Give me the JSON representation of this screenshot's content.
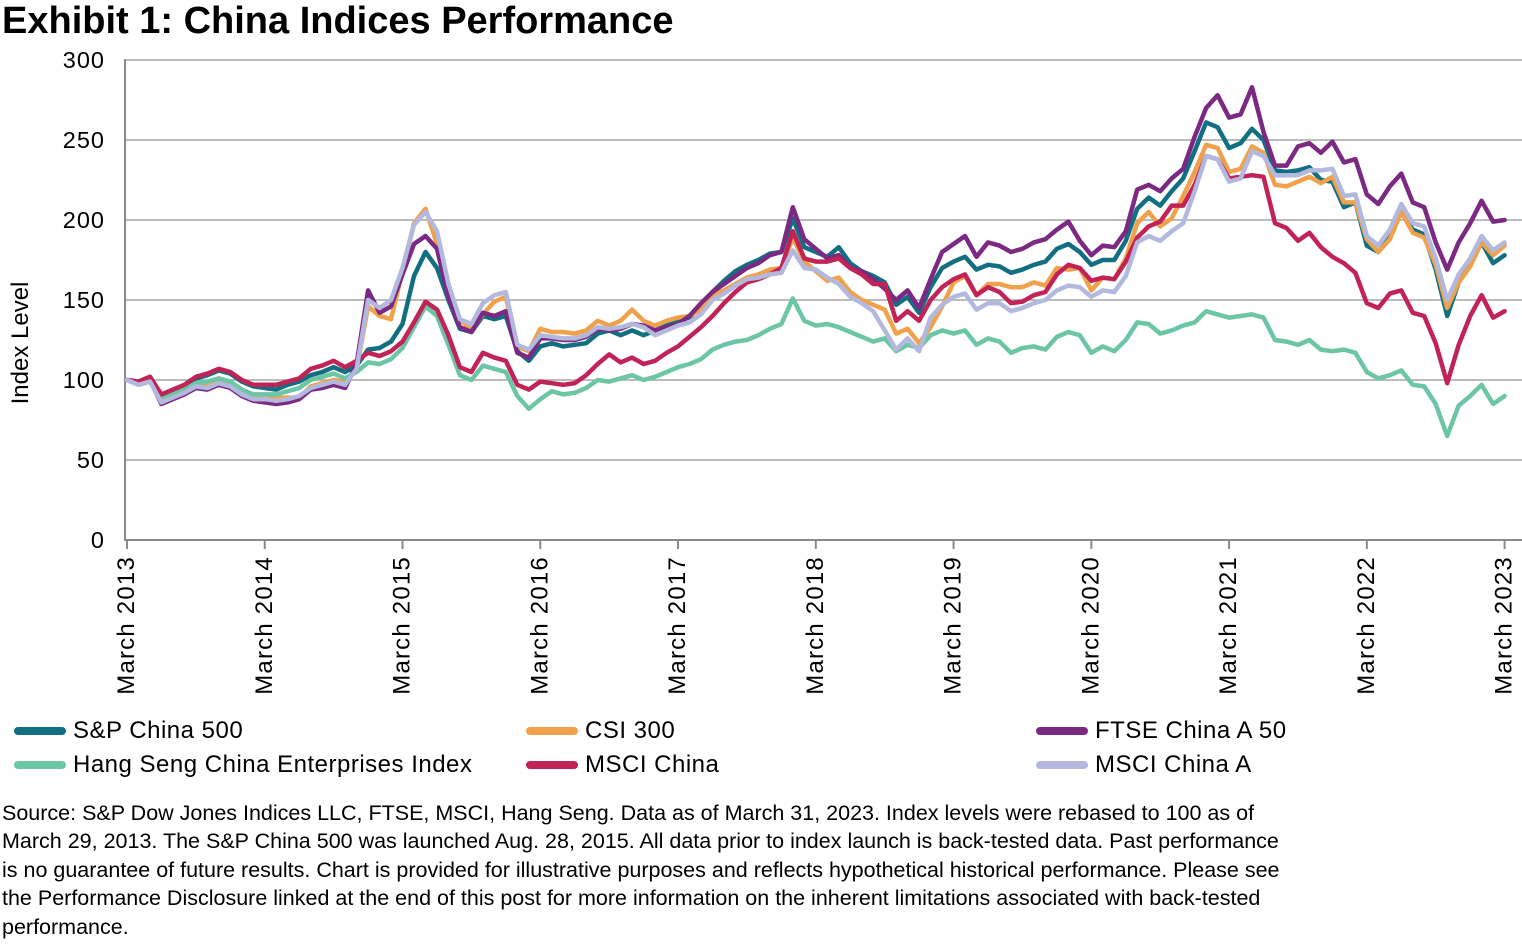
{
  "title": "Exhibit 1: China Indices Performance",
  "chart_data": {
    "type": "line",
    "title": "Exhibit 1: China Indices Performance",
    "ylabel": "Index Level",
    "ylim": [
      0,
      300
    ],
    "yticks": [
      0,
      50,
      100,
      150,
      200,
      250,
      300
    ],
    "grid": "horizontal",
    "legend_position": "bottom",
    "x_unit": "monthly observations from March 2013 to March 2023",
    "x_axis": {
      "tick_labels": [
        "March 2013",
        "March 2014",
        "March 2015",
        "March 2016",
        "March 2017",
        "March 2018",
        "March 2019",
        "March 2020",
        "March 2021",
        "March 2022",
        "March 2023"
      ],
      "tick_month_indices": [
        0,
        12,
        24,
        36,
        48,
        60,
        72,
        84,
        96,
        108,
        120
      ]
    },
    "series": [
      {
        "name": "S&P China 500",
        "color": "#116f81",
        "values": [
          100,
          99,
          102,
          90,
          93,
          96,
          101,
          103,
          106,
          104,
          99,
          96,
          95,
          94,
          97,
          99,
          103,
          105,
          108,
          105,
          109,
          119,
          120,
          124,
          135,
          165,
          180,
          170,
          150,
          132,
          130,
          140,
          138,
          140,
          118,
          112,
          121,
          123,
          121,
          122,
          123,
          129,
          131,
          128,
          131,
          128,
          131,
          134,
          138,
          139,
          146,
          155,
          162,
          168,
          172,
          175,
          179,
          180,
          201,
          183,
          180,
          177,
          183,
          173,
          168,
          165,
          161,
          147,
          152,
          142,
          158,
          170,
          174,
          177,
          169,
          172,
          171,
          167,
          169,
          172,
          174,
          182,
          185,
          180,
          172,
          175,
          175,
          187,
          207,
          214,
          209,
          218,
          226,
          243,
          261,
          258,
          245,
          248,
          257,
          250,
          231,
          230,
          231,
          233,
          225,
          224,
          208,
          211,
          184,
          180,
          189,
          205,
          194,
          191,
          169,
          140,
          161,
          172,
          186,
          173,
          178
        ]
      },
      {
        "name": "CSI 300",
        "color": "#efa24b",
        "values": [
          100,
          98,
          101,
          86,
          90,
          93,
          97,
          98,
          101,
          98,
          93,
          90,
          88,
          89,
          89,
          89,
          96,
          98,
          100,
          99,
          107,
          146,
          140,
          138,
          168,
          198,
          207,
          185,
          157,
          138,
          131,
          141,
          149,
          152,
          121,
          118,
          132,
          130,
          130,
          129,
          131,
          137,
          134,
          137,
          144,
          137,
          134,
          137,
          139,
          140,
          144,
          153,
          156,
          160,
          164,
          166,
          169,
          170,
          189,
          174,
          168,
          162,
          164,
          155,
          150,
          147,
          144,
          129,
          132,
          123,
          133,
          146,
          161,
          165,
          153,
          160,
          160,
          158,
          158,
          161,
          159,
          170,
          169,
          170,
          156,
          164,
          163,
          176,
          198,
          205,
          196,
          201,
          215,
          230,
          247,
          245,
          230,
          232,
          246,
          242,
          222,
          221,
          224,
          227,
          223,
          227,
          211,
          211,
          188,
          180,
          188,
          205,
          192,
          189,
          172,
          145,
          161,
          171,
          186,
          178,
          184
        ]
      },
      {
        "name": "FTSE China A 50",
        "color": "#7b2982",
        "values": [
          100,
          98,
          100,
          85,
          88,
          91,
          95,
          94,
          97,
          95,
          90,
          87,
          86,
          85,
          86,
          88,
          94,
          95,
          97,
          95,
          110,
          156,
          142,
          146,
          166,
          185,
          190,
          182,
          152,
          133,
          130,
          142,
          140,
          143,
          117,
          114,
          126,
          126,
          125,
          125,
          127,
          132,
          131,
          132,
          135,
          134,
          131,
          133,
          135,
          140,
          148,
          155,
          160,
          165,
          170,
          173,
          178,
          180,
          208,
          188,
          182,
          176,
          178,
          170,
          168,
          163,
          157,
          150,
          156,
          145,
          163,
          180,
          185,
          190,
          177,
          186,
          184,
          180,
          182,
          186,
          188,
          194,
          199,
          187,
          178,
          184,
          183,
          193,
          219,
          222,
          218,
          226,
          232,
          252,
          270,
          278,
          264,
          266,
          283,
          255,
          234,
          234,
          246,
          248,
          242,
          249,
          236,
          238,
          216,
          210,
          221,
          229,
          211,
          208,
          186,
          169,
          186,
          198,
          212,
          199,
          200
        ]
      },
      {
        "name": "Hang Seng China Enterprises Index",
        "color": "#6cc6a4",
        "values": [
          100,
          97,
          99,
          88,
          91,
          94,
          98,
          99,
          101,
          99,
          94,
          91,
          91,
          91,
          93,
          95,
          100,
          102,
          104,
          101,
          105,
          111,
          110,
          113,
          120,
          133,
          146,
          140,
          122,
          103,
          100,
          109,
          107,
          105,
          90,
          82,
          88,
          93,
          91,
          92,
          95,
          100,
          99,
          101,
          103,
          100,
          102,
          105,
          108,
          110,
          113,
          119,
          122,
          124,
          125,
          128,
          132,
          135,
          151,
          137,
          134,
          135,
          133,
          130,
          127,
          124,
          126,
          118,
          122,
          120,
          128,
          131,
          129,
          131,
          122,
          126,
          124,
          117,
          120,
          121,
          119,
          127,
          130,
          128,
          117,
          121,
          118,
          125,
          136,
          135,
          129,
          131,
          134,
          136,
          143,
          141,
          139,
          140,
          141,
          139,
          125,
          124,
          122,
          125,
          119,
          118,
          119,
          117,
          105,
          101,
          103,
          106,
          97,
          96,
          85,
          65,
          84,
          90,
          97,
          85,
          90
        ]
      },
      {
        "name": "MSCI China",
        "color": "#c22356",
        "values": [
          100,
          99,
          102,
          91,
          94,
          97,
          102,
          104,
          107,
          105,
          100,
          97,
          97,
          97,
          99,
          101,
          107,
          109,
          112,
          108,
          112,
          117,
          115,
          118,
          124,
          136,
          149,
          144,
          128,
          108,
          105,
          117,
          114,
          112,
          97,
          94,
          99,
          98,
          97,
          98,
          103,
          110,
          116,
          111,
          114,
          110,
          112,
          117,
          121,
          127,
          133,
          140,
          148,
          155,
          161,
          163,
          166,
          170,
          193,
          176,
          174,
          174,
          176,
          170,
          166,
          160,
          160,
          137,
          143,
          137,
          150,
          158,
          163,
          166,
          153,
          158,
          155,
          148,
          149,
          153,
          155,
          166,
          172,
          170,
          162,
          164,
          163,
          174,
          189,
          196,
          199,
          209,
          209,
          222,
          240,
          238,
          226,
          227,
          228,
          227,
          198,
          195,
          187,
          192,
          183,
          177,
          173,
          167,
          148,
          145,
          154,
          156,
          142,
          140,
          123,
          98,
          122,
          140,
          153,
          139,
          143
        ]
      },
      {
        "name": "MSCI China A",
        "color": "#b3b9de",
        "values": [
          100,
          97,
          99,
          86,
          89,
          92,
          96,
          95,
          98,
          96,
          91,
          88,
          88,
          87,
          88,
          90,
          95,
          97,
          99,
          97,
          107,
          150,
          145,
          150,
          170,
          197,
          205,
          193,
          160,
          138,
          135,
          148,
          153,
          155,
          122,
          119,
          128,
          127,
          126,
          126,
          128,
          133,
          132,
          133,
          135,
          133,
          128,
          131,
          134,
          136,
          141,
          150,
          154,
          159,
          163,
          164,
          166,
          167,
          181,
          170,
          169,
          164,
          160,
          152,
          148,
          143,
          131,
          119,
          126,
          118,
          139,
          147,
          152,
          154,
          144,
          148,
          148,
          143,
          145,
          148,
          150,
          156,
          159,
          158,
          152,
          156,
          155,
          165,
          186,
          190,
          187,
          193,
          198,
          218,
          240,
          238,
          224,
          226,
          243,
          240,
          228,
          228,
          228,
          231,
          231,
          232,
          215,
          216,
          190,
          184,
          194,
          210,
          198,
          196,
          176,
          150,
          166,
          176,
          190,
          181,
          186
        ]
      }
    ]
  },
  "source_note": {
    "lines": [
      "Source: S&P Dow Jones Indices LLC, FTSE, MSCI, Hang Seng. Data as of March 31, 2023. Index levels were rebased to 100 as of",
      "March 29, 2013. The S&P China 500 was launched Aug. 28, 2015. All data prior to index launch is back-tested data. Past performance",
      "is no guarantee of future results. Chart is provided for illustrative purposes and reflects hypothetical historical performance. Please see",
      "the Performance Disclosure linked at the end of this post for more information on the inherent limitations associated with back-tested",
      "performance."
    ]
  }
}
